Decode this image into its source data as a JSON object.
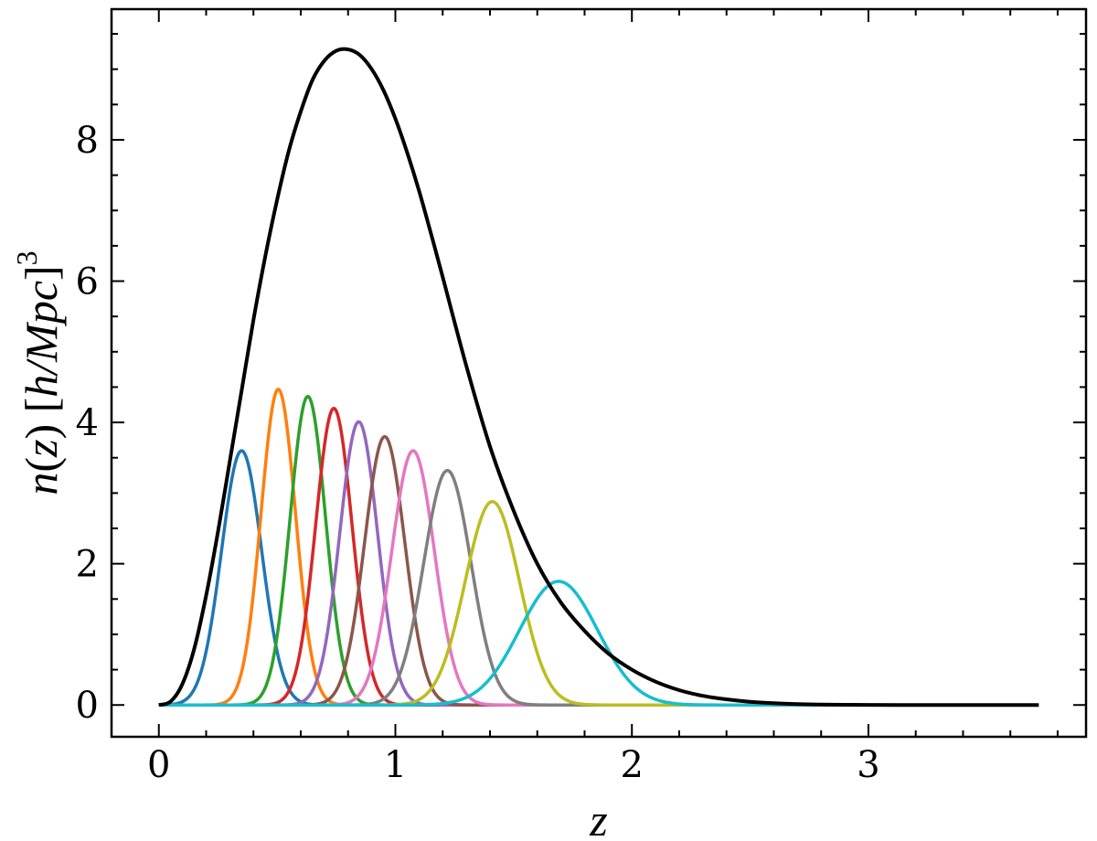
{
  "chart_data": {
    "type": "line",
    "xlabel": "z",
    "ylabel": {
      "n": "n",
      "z_open": "(",
      "z_var": "z",
      "z_close": ")",
      "bracket_open": " [",
      "unit_num": "h",
      "slash": "/",
      "unit_den": "Mpc",
      "bracket_close": "]",
      "exponent": "3"
    },
    "xlim": [
      -0.2,
      3.92
    ],
    "ylim": [
      -0.45,
      9.85
    ],
    "x_ticks": [
      0,
      1,
      2,
      3
    ],
    "x_tick_labels": [
      "0",
      "1",
      "2",
      "3"
    ],
    "y_ticks": [
      0,
      2,
      4,
      6,
      8
    ],
    "y_tick_labels": [
      "0",
      "2",
      "4",
      "6",
      "8"
    ],
    "x_minor_step": 0.2,
    "y_minor_step": 0.5,
    "grid": false,
    "total": {
      "color": "#000000",
      "x": [
        0,
        0.05,
        0.1,
        0.15,
        0.2,
        0.25,
        0.3,
        0.35,
        0.4,
        0.45,
        0.5,
        0.55,
        0.6,
        0.65,
        0.7,
        0.75,
        0.8,
        0.85,
        0.9,
        0.95,
        1.0,
        1.05,
        1.1,
        1.15,
        1.2,
        1.3,
        1.4,
        1.5,
        1.6,
        1.7,
        1.8,
        1.9,
        2.0,
        2.1,
        2.2,
        2.3,
        2.4,
        2.5,
        2.6,
        2.7,
        2.8,
        2.9,
        3.0,
        3.2,
        3.4,
        3.6,
        3.72
      ],
      "values": [
        0.0,
        0.05,
        0.3,
        0.8,
        1.55,
        2.45,
        3.45,
        4.45,
        5.45,
        6.35,
        7.15,
        7.85,
        8.4,
        8.85,
        9.12,
        9.26,
        9.28,
        9.2,
        9.0,
        8.7,
        8.3,
        7.82,
        7.28,
        6.68,
        6.06,
        4.8,
        3.66,
        2.75,
        2.0,
        1.45,
        1.05,
        0.73,
        0.5,
        0.33,
        0.21,
        0.13,
        0.08,
        0.045,
        0.025,
        0.013,
        0.006,
        0.003,
        0.001,
        0.0,
        0.0,
        0.0,
        0.0
      ]
    },
    "bins": [
      {
        "color": "#1f77b4",
        "mean": 0.35,
        "sigma": 0.085,
        "peak": 3.6
      },
      {
        "color": "#ff7f0e",
        "mean": 0.505,
        "sigma": 0.073,
        "peak": 4.47
      },
      {
        "color": "#2ca02c",
        "mean": 0.63,
        "sigma": 0.075,
        "peak": 4.37
      },
      {
        "color": "#d62728",
        "mean": 0.74,
        "sigma": 0.077,
        "peak": 4.2
      },
      {
        "color": "#9467bd",
        "mean": 0.845,
        "sigma": 0.08,
        "peak": 4.01
      },
      {
        "color": "#8c564b",
        "mean": 0.955,
        "sigma": 0.085,
        "peak": 3.8
      },
      {
        "color": "#e377c2",
        "mean": 1.075,
        "sigma": 0.09,
        "peak": 3.6
      },
      {
        "color": "#7f7f7f",
        "mean": 1.22,
        "sigma": 0.1,
        "peak": 3.32
      },
      {
        "color": "#bcbd22",
        "mean": 1.41,
        "sigma": 0.115,
        "peak": 2.88
      },
      {
        "color": "#17becf",
        "mean": 1.69,
        "sigma": 0.165,
        "peak": 1.75
      }
    ]
  }
}
